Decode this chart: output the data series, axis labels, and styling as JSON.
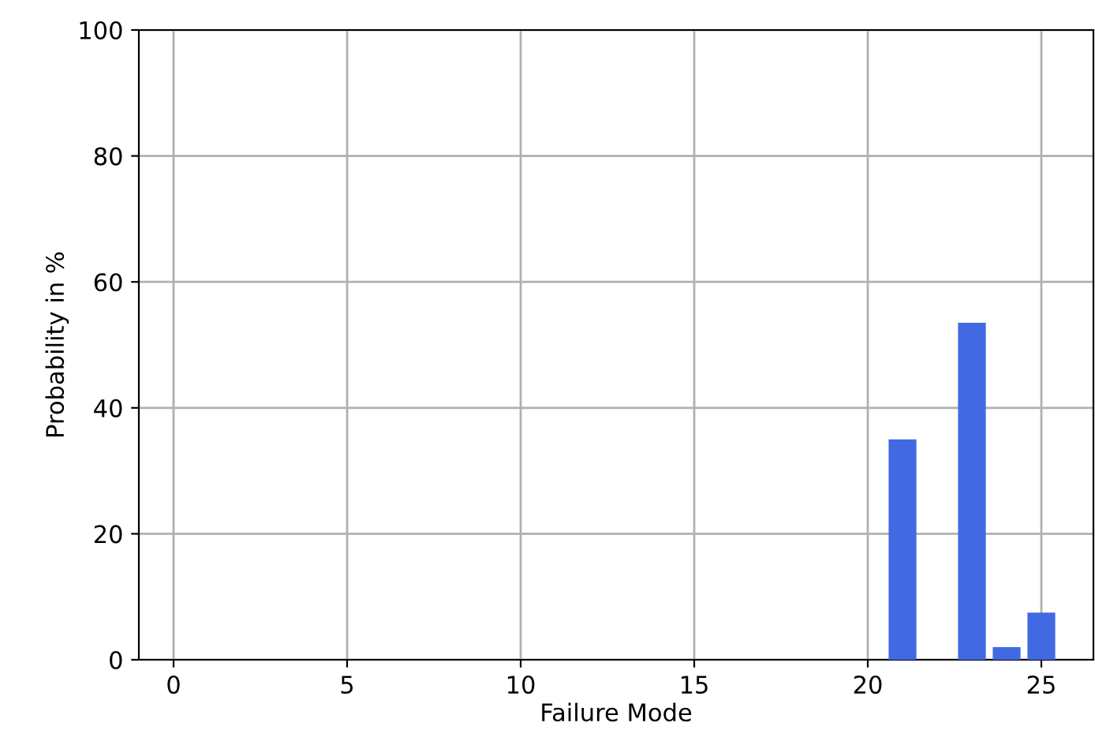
{
  "chart_data": {
    "type": "bar",
    "xlabel": "Failure Mode",
    "ylabel": "Probability in %",
    "x": [
      21,
      23,
      24,
      25
    ],
    "values": [
      35,
      53.5,
      2,
      7.5
    ],
    "color": "#4169e1",
    "xlim": [
      -1,
      26.5
    ],
    "xticks": [
      0,
      5,
      10,
      15,
      20,
      25
    ],
    "ylim": [
      0,
      100
    ],
    "yticks": [
      0,
      20,
      40,
      60,
      80,
      100
    ],
    "grid": true
  }
}
